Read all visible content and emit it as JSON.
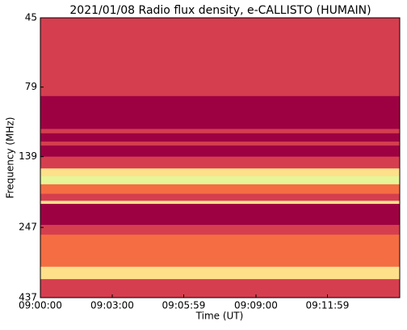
{
  "chart_data": {
    "type": "spectrogram",
    "title": "2021/01/08  Radio flux density, e-CALLISTO (HUMAIN)",
    "x_label": "Time (UT)",
    "y_label": "Frequency (MHz)",
    "xlim": [
      32400,
      33300
    ],
    "xticks": [
      {
        "value": 32400,
        "label": "09:00:00"
      },
      {
        "value": 32580,
        "label": "09:03:00"
      },
      {
        "value": 32759,
        "label": "09:05:59"
      },
      {
        "value": 32940,
        "label": "09:09:00"
      },
      {
        "value": 33119,
        "label": "09:11:59"
      }
    ],
    "ylim": [
      437,
      45
    ],
    "y_log": true,
    "yticks": [
      45,
      79,
      139,
      247,
      437
    ],
    "freq_edges": [
      45,
      79,
      85,
      111,
      115,
      123,
      127,
      139,
      153,
      163,
      174,
      188,
      199,
      204,
      242,
      262,
      340,
      376,
      401,
      437
    ],
    "values": [
      0.12,
      0.1,
      0,
      0.1,
      0,
      0.12,
      0,
      0.2,
      0.5,
      0.8,
      0.35,
      0.15,
      0.6,
      0,
      0.15,
      0.25,
      0.55,
      0.15,
      0.08
    ],
    "zlim": [
      0,
      1
    ],
    "colors": [
      "#9e0142",
      "#d53e4f",
      "#f46d43",
      "#fdae61",
      "#fee08b",
      "#ffffbf",
      "#e6f598",
      "#abdda4"
    ]
  }
}
